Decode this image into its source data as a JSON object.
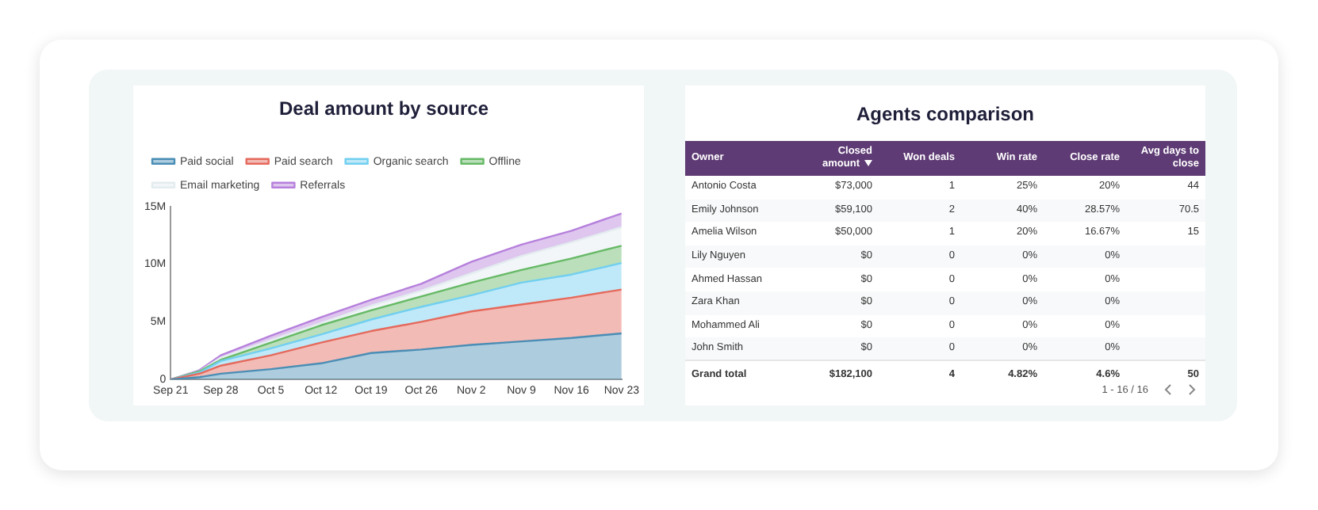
{
  "chart_data": [
    {
      "type": "area",
      "title": "Deal amount by source",
      "stacked": true,
      "legend": "top",
      "marker": "none",
      "x": [
        "--09-21",
        "--09-25",
        "--09-28",
        "--10-05",
        "--10-12",
        "--10-19",
        "--10-26",
        "--11-02",
        "--11-09",
        "--11-16",
        "--11-23"
      ],
      "xlim": [
        "--09-21",
        "--11-23"
      ],
      "xticks": [
        {
          "value": "--09-21",
          "label": "Sep 21"
        },
        {
          "value": "--09-28",
          "label": "Sep 28"
        },
        {
          "value": "--10-05",
          "label": "Oct 5"
        },
        {
          "value": "--10-12",
          "label": "Oct 12"
        },
        {
          "value": "--10-19",
          "label": "Oct 19"
        },
        {
          "value": "--10-26",
          "label": "Oct 26"
        },
        {
          "value": "--11-02",
          "label": "Nov 2"
        },
        {
          "value": "--11-09",
          "label": "Nov 9"
        },
        {
          "value": "--11-16",
          "label": "Nov 16"
        },
        {
          "value": "--11-23",
          "label": "Nov 23"
        }
      ],
      "ylim": [
        0,
        15000000
      ],
      "yticks": [
        0,
        {
          "value": 5000000,
          "label": "5M"
        },
        {
          "value": 10000000,
          "label": "10M"
        },
        {
          "value": 15000000,
          "label": "15M"
        }
      ],
      "series": [
        {
          "name": "Paid social",
          "color": "#4a8db5",
          "values": [
            0,
            200000,
            500000,
            900000,
            1400000,
            2300000,
            2600000,
            3000000,
            3300000,
            3600000,
            4000000
          ]
        },
        {
          "name": "Paid search",
          "color": "#e5695c",
          "values": [
            0,
            300000,
            700000,
            1200000,
            1800000,
            1900000,
            2400000,
            2900000,
            3200000,
            3500000,
            3800000
          ]
        },
        {
          "name": "Organic search",
          "color": "#72cff0",
          "values": [
            0,
            100000,
            400000,
            600000,
            700000,
            1000000,
            1300000,
            1400000,
            1900000,
            2000000,
            2300000
          ]
        },
        {
          "name": "Offline",
          "color": "#66b966",
          "values": [
            0,
            100000,
            100000,
            500000,
            800000,
            800000,
            900000,
            1100000,
            1100000,
            1400000,
            1500000
          ]
        },
        {
          "name": "Email marketing",
          "color": "#e3ecef",
          "values": [
            0,
            0,
            200000,
            200000,
            200000,
            400000,
            500000,
            800000,
            1200000,
            1400000,
            1600000
          ]
        },
        {
          "name": "Referrals",
          "color": "#b680dc",
          "values": [
            0,
            100000,
            200000,
            400000,
            500000,
            500000,
            600000,
            1000000,
            1000000,
            1000000,
            1200000
          ]
        }
      ]
    },
    {
      "type": "other",
      "title": "Agents comparison",
      "annotations": [
        "Owner",
        "Closed amount",
        "Won deals",
        "Win rate",
        "Close rate",
        "Avg days to close",
        "Antonio Costa",
        "$73,000",
        "1",
        "25%",
        "20%",
        "44",
        "Emily Johnson",
        "$59,100",
        "2",
        "40%",
        "28.57%",
        "70.5",
        "Amelia Wilson",
        "$50,000",
        "1",
        "20%",
        "16.67%",
        "15",
        "Lily Nguyen",
        "$0",
        "0",
        "0%",
        "0%",
        null,
        "Ahmed Hassan",
        "$0",
        "0",
        "0%",
        "0%",
        null,
        "Zara Khan",
        "$0",
        "0",
        "0%",
        "0%",
        null,
        "Mohammed Ali",
        "$0",
        "0",
        "0%",
        "0%",
        null,
        "John Smith",
        "$0",
        "0",
        "0%",
        "0%",
        null,
        "Grand total",
        "$182,100",
        "4",
        "4.82%",
        "4.6%",
        "50",
        "1 - 16 / 16"
      ]
    }
  ]
}
